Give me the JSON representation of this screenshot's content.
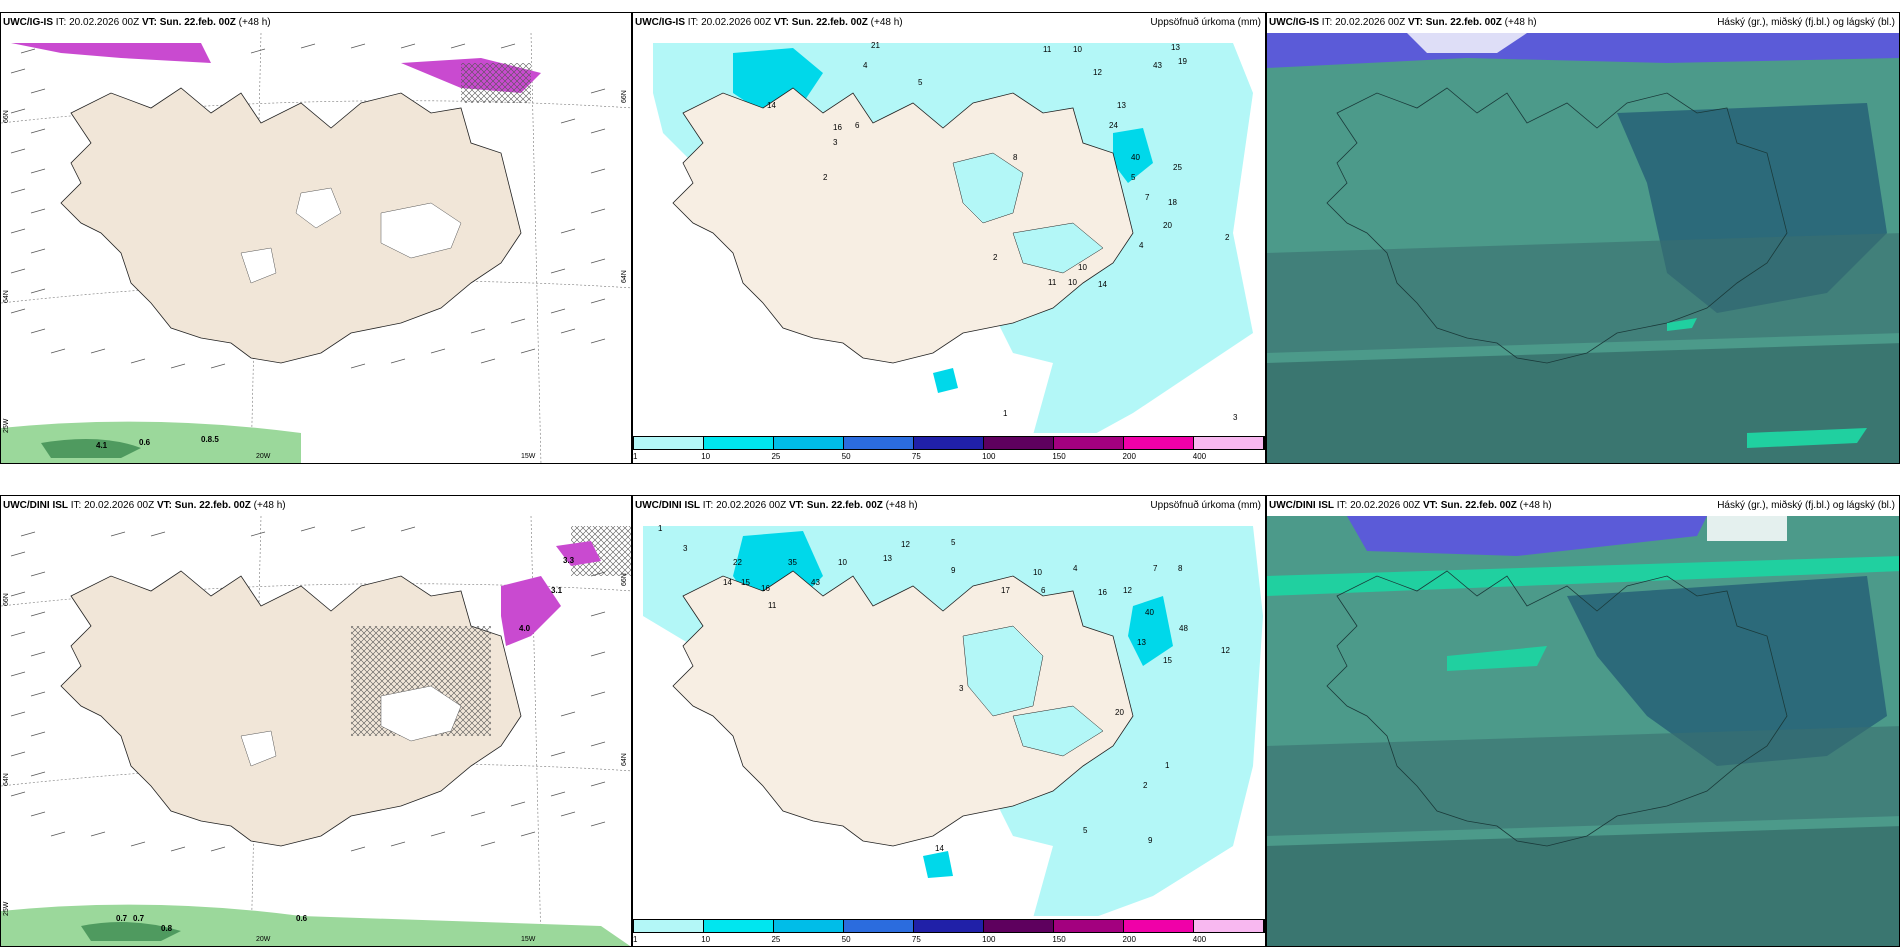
{
  "panels": [
    {
      "id": "top-left",
      "model": "UWC/IG-IS",
      "it_label": "IT:",
      "it_value": "20.02.2026 00Z",
      "vt_label": "VT:",
      "vt_value": "Sun. 22.feb. 00Z",
      "lead": "(+48 h)",
      "right_title": "",
      "lat_labels": [
        "66N",
        "64N",
        "25W"
      ],
      "lat_labels_right": [
        "66N",
        "64N"
      ],
      "lon_labels": [
        "20W",
        "15W"
      ],
      "values": [
        "0.6",
        "0.8.5",
        "4.1"
      ]
    },
    {
      "id": "top-mid",
      "model": "UWC/IG-IS",
      "it_label": "IT:",
      "it_value": "20.02.2026 00Z",
      "vt_label": "VT:",
      "vt_value": "Sun. 22.feb. 00Z",
      "lead": "(+48 h)",
      "right_title": "Uppsöfnuð úrkoma (mm)",
      "numbers": [
        "21",
        "43",
        "19",
        "13",
        "14",
        "12",
        "10",
        "4",
        "5",
        "11",
        "10",
        "7",
        "6",
        "3",
        "2",
        "16",
        "40",
        "25",
        "18",
        "24",
        "13",
        "2",
        "8",
        "11",
        "10",
        "14",
        "20",
        "4",
        "5",
        "2",
        "1",
        "3"
      ]
    },
    {
      "id": "top-right",
      "model": "UWC/IG-IS",
      "it_label": "IT:",
      "it_value": "20.02.2026 00Z",
      "vt_label": "VT:",
      "vt_value": "Sun. 22.feb. 00Z",
      "lead": "(+48 h)",
      "right_title": "Háský (gr.), miðský (fj.bl.) og lágský (bl.)"
    },
    {
      "id": "bottom-left",
      "model": "UWC/DINI ISL",
      "it_label": "IT:",
      "it_value": "20.02.2026 00Z",
      "vt_label": "VT:",
      "vt_value": "Sun. 22.feb. 00Z",
      "lead": "(+48 h)",
      "right_title": "",
      "lat_labels": [
        "66N",
        "64N",
        "25W"
      ],
      "lat_labels_right": [
        "66N",
        "64N"
      ],
      "lon_labels": [
        "20W",
        "15W"
      ],
      "values": [
        "0.7",
        "0.7",
        "0.6",
        "0.8",
        "4.0",
        "3.1",
        "3.3"
      ]
    },
    {
      "id": "bottom-mid",
      "model": "UWC/DINI ISL",
      "it_label": "IT:",
      "it_value": "20.02.2026 00Z",
      "vt_label": "VT:",
      "vt_value": "Sun. 22.feb. 00Z",
      "lead": "(+48 h)",
      "right_title": "Uppsöfnuð úrkoma (mm)",
      "numbers": [
        "1",
        "3",
        "10",
        "13",
        "12",
        "22",
        "35",
        "14",
        "15",
        "16",
        "43",
        "11",
        "5",
        "9",
        "17",
        "10",
        "6",
        "4",
        "7",
        "8",
        "12",
        "16",
        "40",
        "48",
        "13",
        "15",
        "12",
        "20",
        "3",
        "1",
        "2",
        "5",
        "9",
        "14"
      ]
    },
    {
      "id": "bottom-right",
      "model": "UWC/DINI ISL",
      "it_label": "IT:",
      "it_value": "20.02.2026 00Z",
      "vt_label": "VT:",
      "vt_value": "Sun. 22.feb. 00Z",
      "lead": "(+48 h)",
      "right_title": "Háský (gr.), miðský (fj.bl.) og lágský (bl.)"
    }
  ],
  "precip_legend": {
    "ticks": [
      "1",
      "10",
      "25",
      "50",
      "75",
      "100",
      "150",
      "200",
      "400"
    ],
    "colors": [
      "#b3f7f7",
      "#00e6ef",
      "#00bde8",
      "#2b6cde",
      "#2020a8",
      "#5e005e",
      "#a3007f",
      "#f000a8",
      "#f8b8f0"
    ]
  },
  "colors": {
    "land": "#f1e6d8",
    "ocean_cloud": "#4c9a8a",
    "ocean_dark": "#2c6a6a",
    "precip_light": "#b3f7f7",
    "snow_green": "#9bd89b"
  }
}
